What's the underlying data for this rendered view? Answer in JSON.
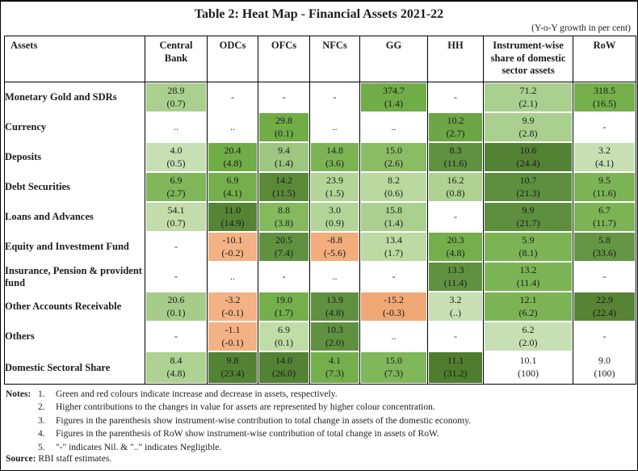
{
  "title": "Table 2: Heat Map - Financial Assets 2021-22",
  "subtitle": "(Y-o-Y growth in per cent)",
  "chart_data": {
    "type": "heatmap",
    "title": "Table 2: Heat Map - Financial Assets 2021-22",
    "unit": "Y-o-Y growth in per cent; figures in parenthesis are contributions",
    "legend": "green = increase, red = decrease; darker colour = higher contribution",
    "columns": [
      "Assets",
      "Central Bank",
      "ODCs",
      "OFCs",
      "NFCs",
      "GG",
      "HH",
      "Instrument-wise share of domestic sector assets",
      "RoW"
    ],
    "rows": [
      {
        "label": "Monetary Gold and SDRs",
        "cells": [
          {
            "v": "28.9",
            "p": "(0.7)",
            "c": "#a9d08e"
          },
          {
            "v": "-",
            "p": "",
            "c": "#ffffff"
          },
          {
            "v": "-",
            "p": "",
            "c": "#ffffff"
          },
          {
            "v": "-",
            "p": "",
            "c": "#ffffff"
          },
          {
            "v": "374.7",
            "p": "(1.4)",
            "c": "#70ad47"
          },
          {
            "v": "-",
            "p": "",
            "c": "#ffffff"
          },
          {
            "v": "71.2",
            "p": "(2.1)",
            "c": "#a9d08e"
          },
          {
            "v": "318.5",
            "p": "(16.5)",
            "c": "#74af4b"
          }
        ]
      },
      {
        "label": "Currency",
        "cells": [
          {
            "v": "..",
            "p": "",
            "c": "#ffffff"
          },
          {
            "v": "..",
            "p": "",
            "c": "#ffffff"
          },
          {
            "v": "29.8",
            "p": "(0.1)",
            "c": "#70ad47"
          },
          {
            "v": "..",
            "p": "",
            "c": "#ffffff"
          },
          {
            "v": "..",
            "p": "",
            "c": "#ffffff"
          },
          {
            "v": "10.2",
            "p": "(2.7)",
            "c": "#6ba647"
          },
          {
            "v": "9.9",
            "p": "(2.8)",
            "c": "#a9d08e"
          },
          {
            "v": "-",
            "p": "",
            "c": "#ffffff"
          }
        ]
      },
      {
        "label": "Deposits",
        "cells": [
          {
            "v": "4.0",
            "p": "(0.5)",
            "c": "#c6e0b4"
          },
          {
            "v": "20.4",
            "p": "(4.8)",
            "c": "#70ad47"
          },
          {
            "v": "9.4",
            "p": "(1.4)",
            "c": "#9dc681"
          },
          {
            "v": "14.8",
            "p": "(3.6)",
            "c": "#7cb455"
          },
          {
            "v": "15.0",
            "p": "(2.6)",
            "c": "#8abc63"
          },
          {
            "v": "8.3",
            "p": "(11.6)",
            "c": "#5f9140"
          },
          {
            "v": "10.6",
            "p": "(24.4)",
            "c": "#548235"
          },
          {
            "v": "3.2",
            "p": "(4.1)",
            "c": "#c6e0b4"
          }
        ]
      },
      {
        "label": "Debt Securities",
        "cells": [
          {
            "v": "6.9",
            "p": "(2.7)",
            "c": "#80b75a"
          },
          {
            "v": "6.9",
            "p": "(4.1)",
            "c": "#74af4b"
          },
          {
            "v": "14.2",
            "p": "(11.5)",
            "c": "#5a8a38"
          },
          {
            "v": "23.9",
            "p": "(1.5)",
            "c": "#b3d698"
          },
          {
            "v": "8.2",
            "p": "(0.6)",
            "c": "#b9d99f"
          },
          {
            "v": "16.2",
            "p": "(0.8)",
            "c": "#aed292"
          },
          {
            "v": "10.7",
            "p": "(21.3)",
            "c": "#5d8f3e"
          },
          {
            "v": "9.5",
            "p": "(11.6)",
            "c": "#7cb455"
          }
        ]
      },
      {
        "label": "Loans and Advances",
        "cells": [
          {
            "v": "54.1",
            "p": "(0.7)",
            "c": "#c2dda9"
          },
          {
            "v": "11.0",
            "p": "(14.9)",
            "c": "#568334"
          },
          {
            "v": "8.8",
            "p": "(3.8)",
            "c": "#84b95e"
          },
          {
            "v": "3.0",
            "p": "(0.9)",
            "c": "#b3d698"
          },
          {
            "v": "15.8",
            "p": "(1.4)",
            "c": "#a9d08e"
          },
          {
            "v": "-",
            "p": "",
            "c": "#ffffff"
          },
          {
            "v": "9.9",
            "p": "(21.7)",
            "c": "#5d8f3e"
          },
          {
            "v": "6.7",
            "p": "(11.7)",
            "c": "#7cb455"
          }
        ]
      },
      {
        "label": "Equity and Investment Fund",
        "cells": [
          {
            "v": "-",
            "p": "",
            "c": "#ffffff"
          },
          {
            "v": "-10.1",
            "p": "(-0.2)",
            "c": "#f4b183"
          },
          {
            "v": "20.5",
            "p": "(7.4)",
            "c": "#5f9140"
          },
          {
            "v": "-8.8",
            "p": "(-5.6)",
            "c": "#f3ad7c"
          },
          {
            "v": "13.4",
            "p": "(1.7)",
            "c": "#bddaa3"
          },
          {
            "v": "20.3",
            "p": "(4.8)",
            "c": "#74af4b"
          },
          {
            "v": "5.9",
            "p": "(8.1)",
            "c": "#7cb455"
          },
          {
            "v": "5.8",
            "p": "(33.6)",
            "c": "#649646"
          }
        ]
      },
      {
        "label": "Insurance, Pension & provident fund",
        "cells": [
          {
            "v": "-",
            "p": "",
            "c": "#ffffff"
          },
          {
            "v": "..",
            "p": "",
            "c": "#ffffff"
          },
          {
            "v": "-",
            "p": "",
            "c": "#ffffff"
          },
          {
            "v": "..",
            "p": "",
            "c": "#ffffff"
          },
          {
            "v": "-",
            "p": "",
            "c": "#ffffff"
          },
          {
            "v": "13.3",
            "p": "(11.4)",
            "c": "#5f9140"
          },
          {
            "v": "13.2",
            "p": "(11.4)",
            "c": "#7cb455"
          },
          {
            "v": "-",
            "p": "",
            "c": "#ffffff"
          }
        ]
      },
      {
        "label": "Other Accounts Receivable",
        "cells": [
          {
            "v": "20.6",
            "p": "(0.1)",
            "c": "#a5cd89"
          },
          {
            "v": "-3.2",
            "p": "(-0.1)",
            "c": "#f4b183"
          },
          {
            "v": "19.0",
            "p": "(1.7)",
            "c": "#74af4b"
          },
          {
            "v": "13.9",
            "p": "(4.8)",
            "c": "#5f9140"
          },
          {
            "v": "-15.2",
            "p": "(-0.3)",
            "c": "#f0a875"
          },
          {
            "v": "3.2",
            "p": "(..)",
            "c": "#c6e0b4"
          },
          {
            "v": "12.1",
            "p": "(6.2)",
            "c": "#7cb455"
          },
          {
            "v": "22.9",
            "p": "(22.4)",
            "c": "#568334"
          }
        ]
      },
      {
        "label": "Others",
        "cells": [
          {
            "v": "-",
            "p": "",
            "c": "#ffffff"
          },
          {
            "v": "-1.1",
            "p": "(-0.1)",
            "c": "#f4b183"
          },
          {
            "v": "6.9",
            "p": "(0.1)",
            "c": "#c0dda6"
          },
          {
            "v": "10.3",
            "p": "(2.0)",
            "c": "#5f9140"
          },
          {
            "v": "..",
            "p": "",
            "c": "#ffffff"
          },
          {
            "v": "-",
            "p": "",
            "c": "#ffffff"
          },
          {
            "v": "6.2",
            "p": "(2.0)",
            "c": "#c6e0b4"
          },
          {
            "v": "-",
            "p": "",
            "c": "#ffffff"
          }
        ]
      },
      {
        "label": "Domestic Sectoral Share",
        "cells": [
          {
            "v": "8.4",
            "p": "(4.8)",
            "c": "#aed292"
          },
          {
            "v": "9.8",
            "p": "(23.4)",
            "c": "#548235"
          },
          {
            "v": "14.0",
            "p": "(26.0)",
            "c": "#548235"
          },
          {
            "v": "4.1",
            "p": "(7.3)",
            "c": "#74af4b"
          },
          {
            "v": "15.0",
            "p": "(7.3)",
            "c": "#80b75a"
          },
          {
            "v": "11.1",
            "p": "(31.2)",
            "c": "#4f7d2e"
          },
          {
            "v": "10.1",
            "p": "(100)",
            "c": "#ffffff"
          },
          {
            "v": "9.0",
            "p": "(100)",
            "c": "#ffffff"
          }
        ]
      }
    ]
  },
  "notes": {
    "label": "Notes:",
    "items": [
      {
        "n": "1.",
        "text": "Green and red colours indicate increase and decrease in assets, respectively."
      },
      {
        "n": "2.",
        "text": "Higher contributions to the changes in value for assets are represented by higher colour concentration."
      },
      {
        "n": "3.",
        "text": "Figures in the parenthesis show instrument-wise contribution to total change in assets of the domestic economy."
      },
      {
        "n": "4.",
        "text": "Figures in the parenthesis of RoW show instrument-wise contribution of total change in assets of RoW."
      },
      {
        "n": "5.",
        "text": "\"-\" indicates Nil. & \"..\" indicates Negligible."
      }
    ]
  },
  "source": {
    "label": "Source:",
    "text": "RBI staff estimates."
  }
}
